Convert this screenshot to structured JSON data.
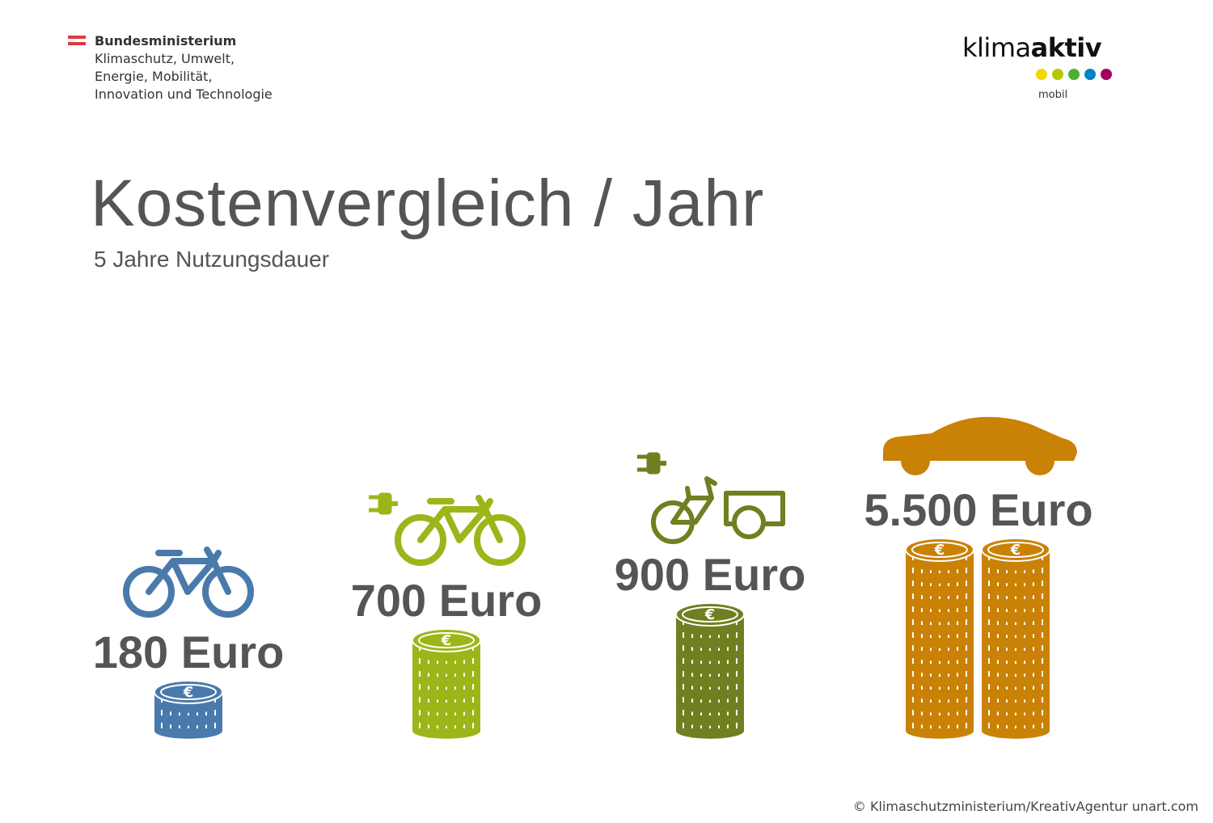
{
  "header": {
    "ministry_lines": [
      "Bundesministerium",
      "Klimaschutz, Umwelt,",
      "Energie, Mobilität,",
      "Innovation und Technologie"
    ],
    "brand_word_light": "klima",
    "brand_word_bold": "aktiv",
    "brand_sub": "mobil",
    "brand_dot_colors": [
      "#f2d700",
      "#b3c800",
      "#4fae32",
      "#0083c9",
      "#a3005f"
    ]
  },
  "chart_data": {
    "type": "bar",
    "title": "Kostenvergleich / Jahr",
    "subtitle": "5 Jahre Nutzungsdauer",
    "unit": "Euro",
    "categories": [
      {
        "icon": "bicycle-icon",
        "value": 180,
        "label": "180 Euro",
        "color": "#4a7aab"
      },
      {
        "icon": "e-bike-icon",
        "value": 700,
        "label": "700 Euro",
        "color": "#9eb51a"
      },
      {
        "icon": "e-cargo-bike-icon",
        "value": 900,
        "label": "900 Euro",
        "color": "#6f8021"
      },
      {
        "icon": "car-icon",
        "value": 5500,
        "label": "5.500 Euro",
        "color": "#c98206"
      }
    ]
  },
  "footer": {
    "credit": "© Klimaschutzministerium/KreativAgentur unart.com"
  }
}
